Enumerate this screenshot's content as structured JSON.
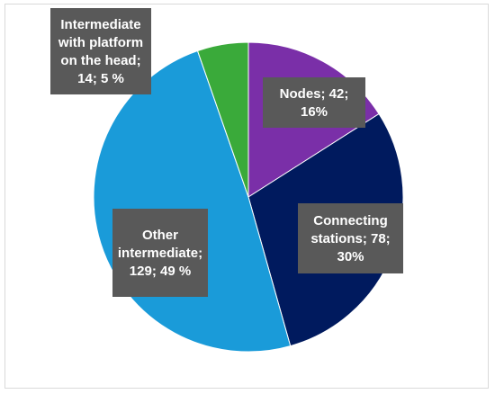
{
  "chart_data": {
    "type": "pie",
    "slices": [
      {
        "name": "Nodes",
        "value": 42,
        "percent_label": "16%",
        "color": "#7a2fa8",
        "label_lines": [
          "Nodes; 42;",
          "16%"
        ]
      },
      {
        "name": "Connecting stations",
        "value": 78,
        "percent_label": "30%",
        "color": "#001a5e",
        "label_lines": [
          "Connecting",
          "stations; 78;",
          "30%"
        ]
      },
      {
        "name": "Other intermediate",
        "value": 129,
        "percent_label": "49 %",
        "color": "#1a9bd9",
        "label_lines": [
          "Other",
          "intermediate;",
          "129; 49 %"
        ]
      },
      {
        "name": "Intermediate with platform on the head",
        "value": 14,
        "percent_label": "5 %",
        "color": "#3aaa3a",
        "label_lines": [
          "Intermediate",
          "with platform",
          "on the head;",
          "14; 5 %"
        ]
      }
    ],
    "start_angle_deg": 0,
    "direction": "clockwise",
    "legend": "none"
  }
}
